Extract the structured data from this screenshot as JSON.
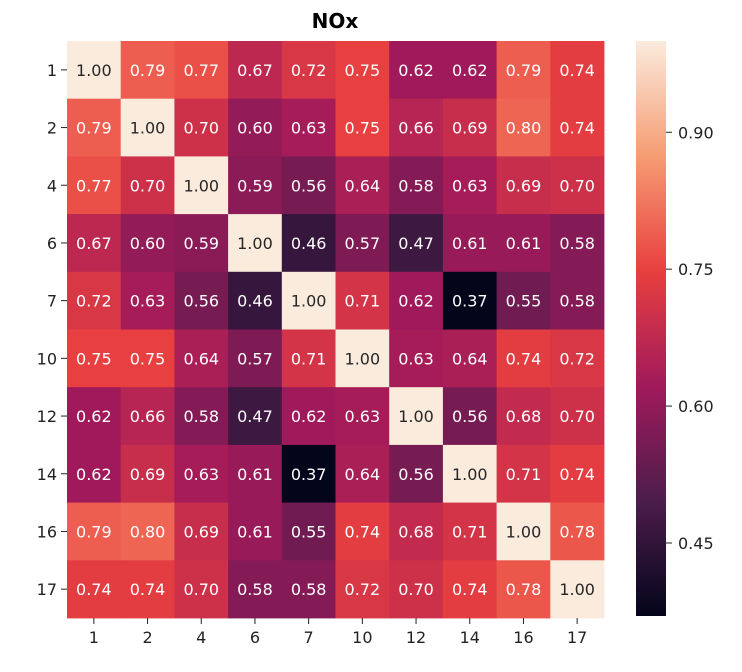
{
  "chart_data": {
    "type": "heatmap",
    "title": "NOx",
    "xlabel": "",
    "ylabel": "",
    "x_categories": [
      "1",
      "2",
      "4",
      "6",
      "7",
      "10",
      "12",
      "14",
      "16",
      "17"
    ],
    "y_categories": [
      "1",
      "2",
      "4",
      "6",
      "7",
      "10",
      "12",
      "14",
      "16",
      "17"
    ],
    "values": [
      [
        1.0,
        0.79,
        0.77,
        0.67,
        0.72,
        0.75,
        0.62,
        0.62,
        0.79,
        0.74
      ],
      [
        0.79,
        1.0,
        0.7,
        0.6,
        0.63,
        0.75,
        0.66,
        0.69,
        0.8,
        0.74
      ],
      [
        0.77,
        0.7,
        1.0,
        0.59,
        0.56,
        0.64,
        0.58,
        0.63,
        0.69,
        0.7
      ],
      [
        0.67,
        0.6,
        0.59,
        1.0,
        0.46,
        0.57,
        0.47,
        0.61,
        0.61,
        0.58
      ],
      [
        0.72,
        0.63,
        0.56,
        0.46,
        1.0,
        0.71,
        0.62,
        0.37,
        0.55,
        0.58
      ],
      [
        0.75,
        0.75,
        0.64,
        0.57,
        0.71,
        1.0,
        0.63,
        0.64,
        0.74,
        0.72
      ],
      [
        0.62,
        0.66,
        0.58,
        0.47,
        0.62,
        0.63,
        1.0,
        0.56,
        0.68,
        0.7
      ],
      [
        0.62,
        0.69,
        0.63,
        0.61,
        0.37,
        0.64,
        0.56,
        1.0,
        0.71,
        0.74
      ],
      [
        0.79,
        0.8,
        0.69,
        0.61,
        0.55,
        0.74,
        0.68,
        0.71,
        1.0,
        0.78
      ],
      [
        0.74,
        0.74,
        0.7,
        0.58,
        0.58,
        0.72,
        0.7,
        0.74,
        0.78,
        1.0
      ]
    ],
    "value_format": "0.00",
    "colorbar": {
      "range": [
        0.37,
        1.0
      ],
      "ticks": [
        0.45,
        0.6,
        0.75,
        0.9
      ],
      "tick_labels": [
        "0.45",
        "0.60",
        "0.75",
        "0.90"
      ]
    },
    "colormap": [
      "#03051a",
      "#4c1d4b",
      "#a11a5b",
      "#e83f3f",
      "#f69c73",
      "#faebdd"
    ],
    "grid": false
  }
}
